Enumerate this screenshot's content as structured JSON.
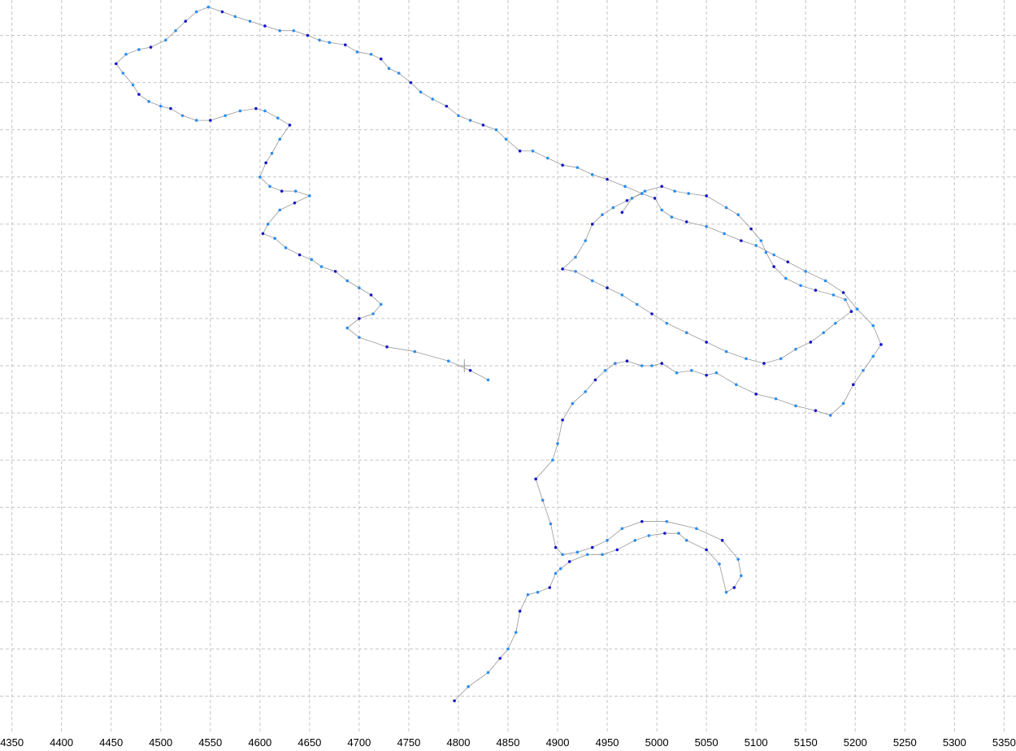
{
  "colors": {
    "background": "#ffffff",
    "grid": "#c6c6c6",
    "track_line": "#8a8a8a",
    "point_light": "#2b8ef0",
    "point_dark": "#1414c8",
    "crosshair": "#9a9a9a"
  },
  "chart_data": {
    "type": "scatter",
    "title": "",
    "xlabel": "",
    "ylabel": "",
    "grid": true,
    "legend": "none",
    "xlim": [
      4338,
      5362
    ],
    "ylim": [
      0,
      15.5
    ],
    "x_ticks": [
      4350,
      4400,
      4450,
      4500,
      4550,
      4600,
      4650,
      4700,
      4750,
      4800,
      4850,
      4900,
      4950,
      5000,
      5050,
      5100,
      5150,
      5200,
      5250,
      5300,
      5350
    ],
    "y_gridlines": [
      0.75,
      1.75,
      2.75,
      3.75,
      4.75,
      5.75,
      6.75,
      7.75,
      8.75,
      9.75,
      10.75,
      11.75,
      12.75,
      13.75,
      14.75
    ],
    "crosshair": [
      4806,
      7.75
    ],
    "series": [
      {
        "points": [
          [
            4796,
            0.65
          ],
          [
            4810,
            0.95
          ],
          [
            4830,
            1.25
          ],
          [
            4842,
            1.55
          ],
          [
            4850,
            1.75
          ],
          [
            4858,
            2.1
          ],
          [
            4862,
            2.55
          ],
          [
            4870,
            2.9
          ],
          [
            4880,
            2.95
          ],
          [
            4892,
            3.05
          ],
          [
            4898,
            3.35
          ],
          [
            4903,
            3.45
          ],
          [
            4912,
            3.6
          ],
          [
            4930,
            3.75
          ],
          [
            4945,
            3.75
          ],
          [
            4960,
            3.85
          ],
          [
            4978,
            4.05
          ],
          [
            4992,
            4.15
          ],
          [
            5008,
            4.2
          ],
          [
            5022,
            4.2
          ],
          [
            5030,
            4.05
          ],
          [
            5050,
            3.85
          ],
          [
            5063,
            3.55
          ],
          [
            5070,
            2.95
          ],
          [
            5078,
            3.05
          ],
          [
            5085,
            3.3
          ],
          [
            5082,
            3.65
          ],
          [
            5066,
            4.05
          ],
          [
            5040,
            4.3
          ],
          [
            5010,
            4.45
          ],
          [
            4985,
            4.45
          ],
          [
            4965,
            4.3
          ],
          [
            4950,
            4.05
          ],
          [
            4935,
            3.9
          ],
          [
            4920,
            3.8
          ],
          [
            4905,
            3.75
          ],
          [
            4898,
            3.9
          ],
          [
            4893,
            4.4
          ],
          [
            4885,
            4.9
          ],
          [
            4878,
            5.35
          ],
          [
            4895,
            5.75
          ],
          [
            4900,
            6.1
          ],
          [
            4905,
            6.6
          ],
          [
            4915,
            6.95
          ],
          [
            4928,
            7.2
          ],
          [
            4938,
            7.45
          ],
          [
            4948,
            7.65
          ],
          [
            4958,
            7.8
          ],
          [
            4970,
            7.85
          ],
          [
            4985,
            7.75
          ],
          [
            4995,
            7.75
          ],
          [
            5005,
            7.8
          ],
          [
            5020,
            7.6
          ],
          [
            5035,
            7.65
          ],
          [
            5050,
            7.55
          ],
          [
            5060,
            7.6
          ],
          [
            5080,
            7.35
          ],
          [
            5100,
            7.15
          ],
          [
            5120,
            7.05
          ],
          [
            5140,
            6.9
          ],
          [
            5160,
            6.8
          ],
          [
            5175,
            6.7
          ],
          [
            5188,
            6.95
          ],
          [
            5198,
            7.35
          ],
          [
            5208,
            7.65
          ],
          [
            5218,
            7.95
          ],
          [
            5226,
            8.2
          ],
          [
            5218,
            8.6
          ],
          [
            5202,
            8.95
          ],
          [
            5188,
            9.3
          ],
          [
            5170,
            9.55
          ],
          [
            5150,
            9.75
          ],
          [
            5132,
            9.95
          ],
          [
            5118,
            10.1
          ],
          [
            5100,
            10.3
          ],
          [
            5085,
            10.4
          ],
          [
            5068,
            10.55
          ],
          [
            5050,
            10.7
          ],
          [
            5030,
            10.8
          ],
          [
            5015,
            10.9
          ],
          [
            5005,
            11.05
          ],
          [
            4998,
            11.3
          ],
          [
            4985,
            11.4
          ],
          [
            4968,
            11.55
          ],
          [
            4950,
            11.7
          ],
          [
            4935,
            11.8
          ],
          [
            4920,
            11.95
          ],
          [
            4905,
            12.0
          ],
          [
            4890,
            12.15
          ],
          [
            4875,
            12.3
          ],
          [
            4862,
            12.3
          ],
          [
            4848,
            12.55
          ],
          [
            4838,
            12.75
          ],
          [
            4825,
            12.85
          ],
          [
            4812,
            12.95
          ],
          [
            4800,
            13.05
          ],
          [
            4788,
            13.25
          ],
          [
            4774,
            13.4
          ],
          [
            4762,
            13.55
          ],
          [
            4752,
            13.75
          ],
          [
            4740,
            13.95
          ],
          [
            4730,
            14.05
          ],
          [
            4722,
            14.25
          ],
          [
            4712,
            14.35
          ],
          [
            4698,
            14.4
          ],
          [
            4686,
            14.55
          ],
          [
            4670,
            14.6
          ],
          [
            4660,
            14.65
          ],
          [
            4648,
            14.75
          ],
          [
            4634,
            14.85
          ],
          [
            4620,
            14.85
          ],
          [
            4605,
            14.95
          ],
          [
            4590,
            15.05
          ],
          [
            4575,
            15.15
          ],
          [
            4562,
            15.25
          ],
          [
            4548,
            15.35
          ],
          [
            4536,
            15.25
          ],
          [
            4525,
            15.05
          ],
          [
            4515,
            14.85
          ],
          [
            4505,
            14.65
          ],
          [
            4490,
            14.5
          ],
          [
            4478,
            14.45
          ],
          [
            4465,
            14.35
          ],
          [
            4455,
            14.15
          ],
          [
            4462,
            13.95
          ],
          [
            4472,
            13.7
          ],
          [
            4478,
            13.5
          ],
          [
            4488,
            13.35
          ],
          [
            4500,
            13.25
          ],
          [
            4510,
            13.2
          ],
          [
            4522,
            13.05
          ],
          [
            4536,
            12.95
          ],
          [
            4550,
            12.95
          ],
          [
            4565,
            13.05
          ],
          [
            4580,
            13.15
          ],
          [
            4596,
            13.2
          ],
          [
            4605,
            13.15
          ],
          [
            4618,
            13.0
          ],
          [
            4630,
            12.85
          ],
          [
            4620,
            12.55
          ],
          [
            4612,
            12.25
          ],
          [
            4606,
            12.05
          ],
          [
            4600,
            11.75
          ],
          [
            4610,
            11.55
          ],
          [
            4622,
            11.45
          ],
          [
            4636,
            11.45
          ],
          [
            4650,
            11.35
          ],
          [
            4635,
            11.2
          ],
          [
            4620,
            11.05
          ],
          [
            4608,
            10.75
          ],
          [
            4603,
            10.55
          ],
          [
            4615,
            10.45
          ],
          [
            4626,
            10.25
          ],
          [
            4640,
            10.1
          ],
          [
            4652,
            10.0
          ],
          [
            4662,
            9.85
          ],
          [
            4676,
            9.75
          ],
          [
            4688,
            9.55
          ],
          [
            4700,
            9.4
          ],
          [
            4712,
            9.25
          ],
          [
            4722,
            9.05
          ],
          [
            4714,
            8.85
          ],
          [
            4700,
            8.75
          ],
          [
            4688,
            8.55
          ],
          [
            4700,
            8.35
          ],
          [
            4728,
            8.15
          ],
          [
            4756,
            8.05
          ],
          [
            4790,
            7.85
          ],
          [
            4812,
            7.65
          ],
          [
            4830,
            7.45
          ]
        ]
      },
      {
        "points": [
          [
            4965,
            11.0
          ],
          [
            4975,
            11.3
          ],
          [
            4988,
            11.45
          ],
          [
            5005,
            11.55
          ],
          [
            5018,
            11.45
          ],
          [
            5032,
            11.4
          ],
          [
            5050,
            11.35
          ],
          [
            5070,
            11.1
          ],
          [
            5082,
            10.95
          ],
          [
            5095,
            10.65
          ],
          [
            5105,
            10.4
          ],
          [
            5110,
            10.15
          ],
          [
            5118,
            9.85
          ],
          [
            5130,
            9.6
          ],
          [
            5145,
            9.45
          ],
          [
            5160,
            9.35
          ],
          [
            5178,
            9.25
          ],
          [
            5190,
            9.15
          ],
          [
            5196,
            8.9
          ],
          [
            5180,
            8.65
          ],
          [
            5168,
            8.45
          ],
          [
            5155,
            8.25
          ],
          [
            5140,
            8.1
          ],
          [
            5125,
            7.9
          ],
          [
            5108,
            7.8
          ],
          [
            5090,
            7.9
          ],
          [
            5070,
            8.05
          ],
          [
            5050,
            8.25
          ],
          [
            5030,
            8.45
          ],
          [
            5010,
            8.65
          ],
          [
            4995,
            8.85
          ],
          [
            4980,
            9.05
          ],
          [
            4965,
            9.25
          ],
          [
            4950,
            9.4
          ],
          [
            4935,
            9.55
          ],
          [
            4918,
            9.75
          ],
          [
            4905,
            9.8
          ],
          [
            4918,
            10.05
          ],
          [
            4928,
            10.4
          ],
          [
            4935,
            10.75
          ],
          [
            4945,
            10.95
          ],
          [
            4956,
            11.1
          ],
          [
            4970,
            11.25
          ],
          [
            4985,
            11.4
          ]
        ]
      }
    ]
  }
}
